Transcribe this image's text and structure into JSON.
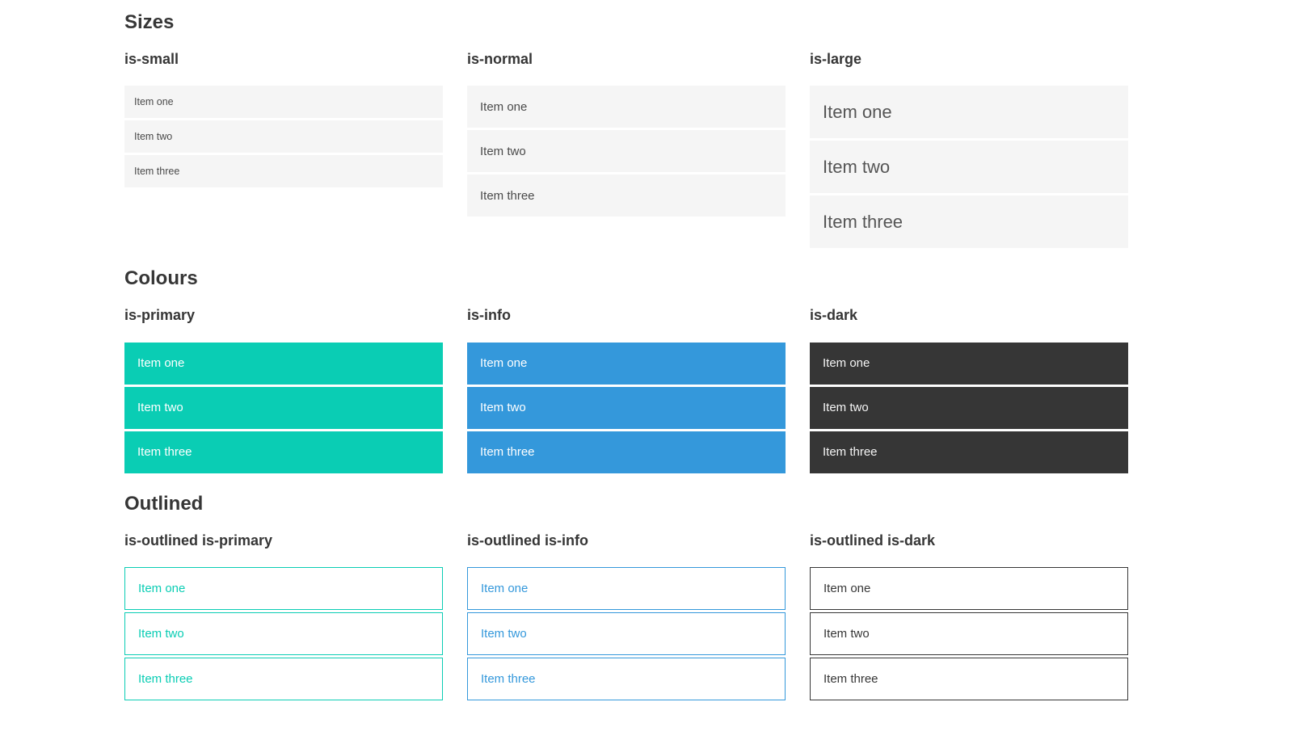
{
  "colors": {
    "primary": "#0acdb4",
    "info": "#3498db",
    "dark": "#363636",
    "item_background_light": "#f5f5f5",
    "heading_text": "#363636",
    "item_text": "#4a4a4a",
    "item_text_on_color": "#ffffff"
  },
  "sections": [
    {
      "title": "Sizes",
      "groups": [
        {
          "label": "is-small",
          "items": [
            "Item one",
            "Item two",
            "Item three"
          ]
        },
        {
          "label": "is-normal",
          "items": [
            "Item one",
            "Item two",
            "Item three"
          ]
        },
        {
          "label": "is-large",
          "items": [
            "Item one",
            "Item two",
            "Item three"
          ]
        }
      ]
    },
    {
      "title": "Colours",
      "groups": [
        {
          "label": "is-primary",
          "items": [
            "Item one",
            "Item two",
            "Item three"
          ]
        },
        {
          "label": "is-info",
          "items": [
            "Item one",
            "Item two",
            "Item three"
          ]
        },
        {
          "label": "is-dark",
          "items": [
            "Item one",
            "Item two",
            "Item three"
          ]
        }
      ]
    },
    {
      "title": "Outlined",
      "groups": [
        {
          "label": "is-outlined is-primary",
          "items": [
            "Item one",
            "Item two",
            "Item three"
          ]
        },
        {
          "label": "is-outlined is-info",
          "items": [
            "Item one",
            "Item two",
            "Item three"
          ]
        },
        {
          "label": "is-outlined is-dark",
          "items": [
            "Item one",
            "Item two",
            "Item three"
          ]
        }
      ]
    }
  ]
}
